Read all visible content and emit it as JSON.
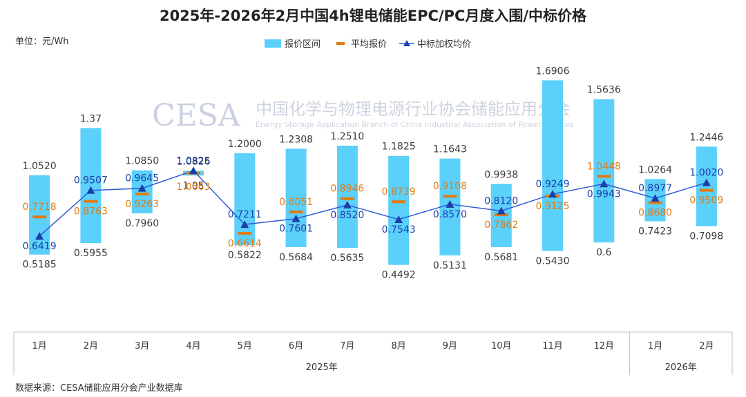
{
  "title": "2025年-2026年2月中国4h锂电储能EPC/PC月度入围/中标价格",
  "unit_label": "单位：元/Wh",
  "source": "数据来源：CESA储能应用分会产业数据库",
  "watermark": {
    "logo": "CESA",
    "name_cn": "中国化学与物理电源行业协会储能应用分会",
    "name_en": "Energy Storage Application Branch of China Industrial Association of Power Sources"
  },
  "colors": {
    "range": "#5BD0FB",
    "avg": "#E07B12",
    "weighted": "#1A3FA8",
    "weighted_line": "#2E5BD6",
    "axis": "#bfbfbf"
  },
  "chart_data": {
    "type": "bar",
    "legend": [
      "报价区间",
      "平均报价",
      "中标加权均价"
    ],
    "legend_position": "top-center",
    "categories": [
      "1月",
      "2月",
      "3月",
      "4月",
      "5月",
      "6月",
      "7月",
      "8月",
      "9月",
      "10月",
      "11月",
      "12月",
      "1月",
      "2月"
    ],
    "groups": [
      {
        "label": "2025年",
        "count": 12
      },
      {
        "label": "2026年",
        "count": 2
      }
    ],
    "series": [
      {
        "name": "报价区间",
        "kind": "range",
        "high": [
          "1.0520",
          "1.37",
          "1.0850",
          "1.0826",
          "1.2000",
          "1.2308",
          "1.2510",
          "1.1825",
          "1.1643",
          "0.9938",
          "1.6906",
          "1.5636",
          "1.0264",
          "1.2446"
        ],
        "low": [
          "0.5185",
          "0.5955",
          "0.7960",
          "1.05",
          "0.5822",
          "0.5684",
          "0.5635",
          "0.4492",
          "0.5131",
          "0.5681",
          "0.5430",
          "0.6",
          "0.7423",
          "0.7098"
        ]
      },
      {
        "name": "平均报价",
        "kind": "marker",
        "values": [
          "0.7718",
          "0.8763",
          "0.9263",
          "1.0663",
          "0.6614",
          "0.8051",
          "0.8946",
          "0.8739",
          "0.9108",
          "0.7862",
          "0.9125",
          "1.0448",
          "0.8680",
          "0.9509"
        ]
      },
      {
        "name": "中标加权均价",
        "kind": "line",
        "values": [
          "0.6419",
          "0.9507",
          "0.9645",
          "1.0825",
          "0.7211",
          "0.7601",
          "0.8520",
          "0.7543",
          "0.8570",
          "0.8120",
          "0.9249",
          "0.9943",
          "0.8977",
          "1.0020"
        ]
      }
    ],
    "ylim": [
      0.3,
      1.75
    ],
    "grid": false
  }
}
